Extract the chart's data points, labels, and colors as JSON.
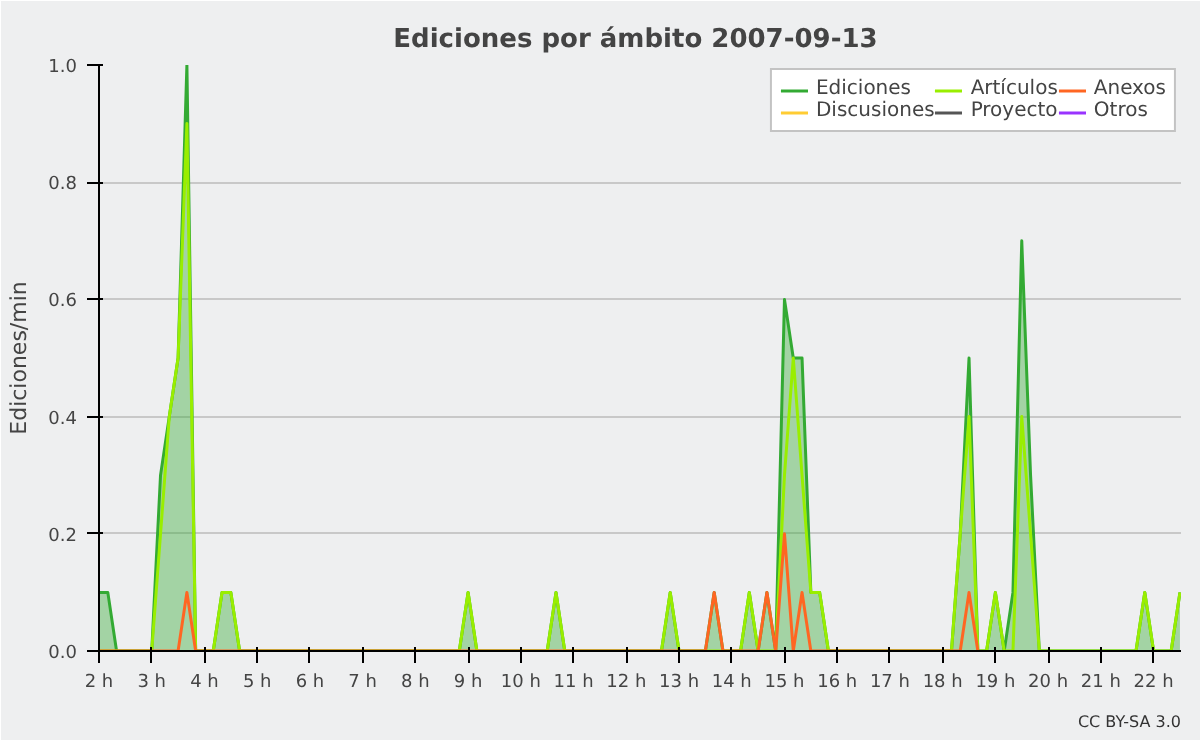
{
  "chart_data": {
    "type": "line",
    "title": "Ediciones por ámbito  2007-09-13",
    "ylabel": "Ediciones/min",
    "xlim": [
      2,
      22.52
    ],
    "ylim": [
      0,
      1
    ],
    "xticks": [
      {
        "value": 2,
        "label": "2 h"
      },
      {
        "value": 3,
        "label": "3 h"
      },
      {
        "value": 4,
        "label": "4 h"
      },
      {
        "value": 5,
        "label": "5 h"
      },
      {
        "value": 6,
        "label": "6 h"
      },
      {
        "value": 7,
        "label": "7 h"
      },
      {
        "value": 8,
        "label": "8 h"
      },
      {
        "value": 9,
        "label": "9 h"
      },
      {
        "value": 10,
        "label": "10 h"
      },
      {
        "value": 11,
        "label": "11 h"
      },
      {
        "value": 12,
        "label": "12 h"
      },
      {
        "value": 13,
        "label": "13 h"
      },
      {
        "value": 14,
        "label": "14 h"
      },
      {
        "value": 15,
        "label": "15 h"
      },
      {
        "value": 16,
        "label": "16 h"
      },
      {
        "value": 17,
        "label": "17 h"
      },
      {
        "value": 18,
        "label": "18 h"
      },
      {
        "value": 19,
        "label": "19 h"
      },
      {
        "value": 20,
        "label": "20 h"
      },
      {
        "value": 21,
        "label": "21 h"
      },
      {
        "value": 22,
        "label": "22 h"
      }
    ],
    "yticks": [
      {
        "value": 0,
        "label": "0.0"
      },
      {
        "value": 0.2,
        "label": "0.2"
      },
      {
        "value": 0.4,
        "label": "0.4"
      },
      {
        "value": 0.6,
        "label": "0.6"
      },
      {
        "value": 0.8,
        "label": "0.8"
      },
      {
        "value": 1,
        "label": "1.0"
      }
    ],
    "grid": "y",
    "legend": "top right",
    "annotations": [
      "CC BY-SA 3.0"
    ],
    "series": [
      {
        "name": "Ediciones",
        "type": "area",
        "color": "#33aa33",
        "x": [
          2,
          2.167,
          2.333,
          3,
          3.167,
          3.333,
          3.5,
          3.667,
          3.833,
          4.167,
          4.333,
          4.5,
          4.667,
          8.833,
          9,
          9.167,
          10.5,
          10.667,
          10.833,
          12.667,
          12.833,
          13,
          13.5,
          13.667,
          13.833,
          14.167,
          14.333,
          14.5,
          14.667,
          14.833,
          15,
          15.167,
          15.333,
          15.5,
          15.667,
          15.833,
          18.167,
          18.333,
          18.5,
          18.667,
          18.833,
          19,
          19.167,
          19.333,
          19.5,
          19.667,
          19.833,
          21.667,
          21.833,
          22,
          22.333,
          22.5
        ],
        "values": [
          0.1,
          0.1,
          0,
          0,
          0.3,
          0.4,
          0.5,
          1.0,
          0,
          0,
          0.1,
          0.1,
          0,
          0,
          0.1,
          0,
          0,
          0.1,
          0,
          0,
          0.1,
          0,
          0,
          0.1,
          0,
          0,
          0.1,
          0,
          0.1,
          0,
          0.6,
          0.5,
          0.5,
          0.1,
          0.1,
          0,
          0,
          0.2,
          0.5,
          0,
          0,
          0.1,
          0,
          0.1,
          0.7,
          0.3,
          0,
          0,
          0.1,
          0,
          0,
          0.1
        ]
      },
      {
        "name": "Artículos",
        "color": "#99ee00",
        "x": [
          2,
          3,
          3.167,
          3.333,
          3.5,
          3.667,
          3.833,
          4.167,
          4.333,
          4.5,
          4.667,
          8.833,
          9,
          9.167,
          10.5,
          10.667,
          10.833,
          12.667,
          12.833,
          13,
          14.167,
          14.333,
          14.5,
          14.833,
          15,
          15.167,
          15.333,
          15.5,
          15.667,
          15.833,
          18.167,
          18.333,
          18.5,
          18.667,
          18.833,
          19,
          19.167,
          19.333,
          19.5,
          19.667,
          19.833,
          21.667,
          21.833,
          22,
          22.333,
          22.5
        ],
        "values": [
          0,
          0,
          0.2,
          0.4,
          0.5,
          0.9,
          0,
          0,
          0.1,
          0.1,
          0,
          0,
          0.1,
          0,
          0,
          0.1,
          0,
          0,
          0.1,
          0,
          0,
          0.1,
          0,
          0,
          0.3,
          0.5,
          0.3,
          0.1,
          0.1,
          0,
          0,
          0.2,
          0.4,
          0,
          0,
          0.1,
          0,
          0,
          0.4,
          0.2,
          0,
          0,
          0.1,
          0,
          0,
          0.1
        ]
      },
      {
        "name": "Anexos",
        "color": "#ff6622",
        "x": [
          2,
          3.5,
          3.667,
          3.833,
          13.5,
          13.667,
          13.833,
          14.5,
          14.667,
          14.833,
          15,
          15.167,
          15.333,
          15.5,
          18.333,
          18.5,
          18.667
        ],
        "values": [
          0,
          0,
          0.1,
          0,
          0,
          0.1,
          0,
          0,
          0.1,
          0,
          0.2,
          0,
          0.1,
          0,
          0,
          0.1,
          0
        ]
      },
      {
        "name": "Discusiones",
        "color": "#ffcc33"
      },
      {
        "name": "Proyecto",
        "color": "#555555"
      },
      {
        "name": "Otros",
        "color": "#9933ff"
      }
    ]
  }
}
